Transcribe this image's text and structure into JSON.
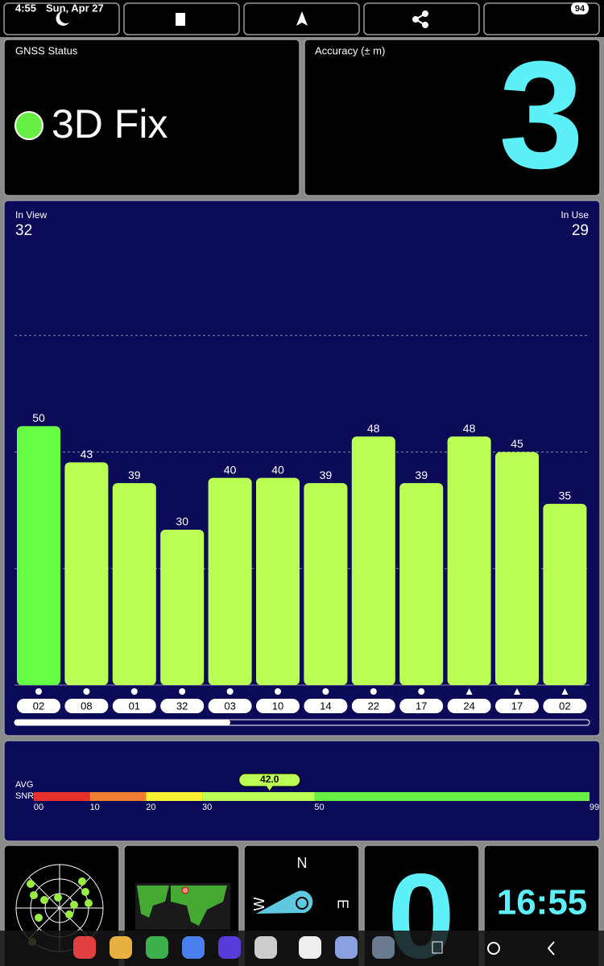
{
  "status_bar": {
    "time": "4:55",
    "date": "Sun, Apr 27",
    "battery": "94"
  },
  "gnss_status": {
    "title": "GNSS Status",
    "fix": "3D Fix",
    "indicator_color": "#66ee44"
  },
  "accuracy": {
    "title": "Accuracy (± m)",
    "value": 3
  },
  "signal_chart": {
    "in_view_label": "In View",
    "in_view": 32,
    "in_use_label": "In Use",
    "in_use": 29,
    "ylim": [
      0,
      90
    ],
    "gridlines": [
      22.5,
      45,
      67.5
    ],
    "satellites": [
      "02",
      "08",
      "01",
      "32",
      "03",
      "10",
      "14",
      "22",
      "17",
      "24",
      "17",
      "02"
    ],
    "values": [
      50,
      43,
      39,
      30,
      40,
      40,
      39,
      48,
      39,
      48,
      45,
      35
    ],
    "colors": [
      "#66ff44",
      "#bbff55",
      "#bbff55",
      "#bbff55",
      "#bbff55",
      "#bbff55",
      "#bbff55",
      "#bbff55",
      "#bbff55",
      "#bbff55",
      "#bbff55",
      "#bbff55"
    ],
    "markers": [
      "circle",
      "circle",
      "circle",
      "circle",
      "circle",
      "circle",
      "circle",
      "circle",
      "circle",
      "triangle",
      "triangle",
      "triangle"
    ]
  },
  "snr": {
    "avg_label": "AVG",
    "snr_label": "SNR",
    "average": 42.0,
    "average_label": "42.0",
    "range": [
      0,
      99
    ],
    "ticks": [
      {
        "value": 0,
        "label": "00"
      },
      10,
      20,
      30,
      50,
      99
    ],
    "segments": [
      {
        "from": 0,
        "to": 10,
        "color": "#e8302a"
      },
      {
        "from": 10,
        "to": 20,
        "color": "#f08030"
      },
      {
        "from": 20,
        "to": 30,
        "color": "#f8f030"
      },
      {
        "from": 30,
        "to": 50,
        "color": "#bbff55"
      },
      {
        "from": 50,
        "to": 99,
        "color": "#66ee44"
      }
    ]
  },
  "tiles": {
    "compass": {
      "north": "N",
      "east": "E",
      "west": "W"
    },
    "speed": 0,
    "clock": "16:55"
  }
}
